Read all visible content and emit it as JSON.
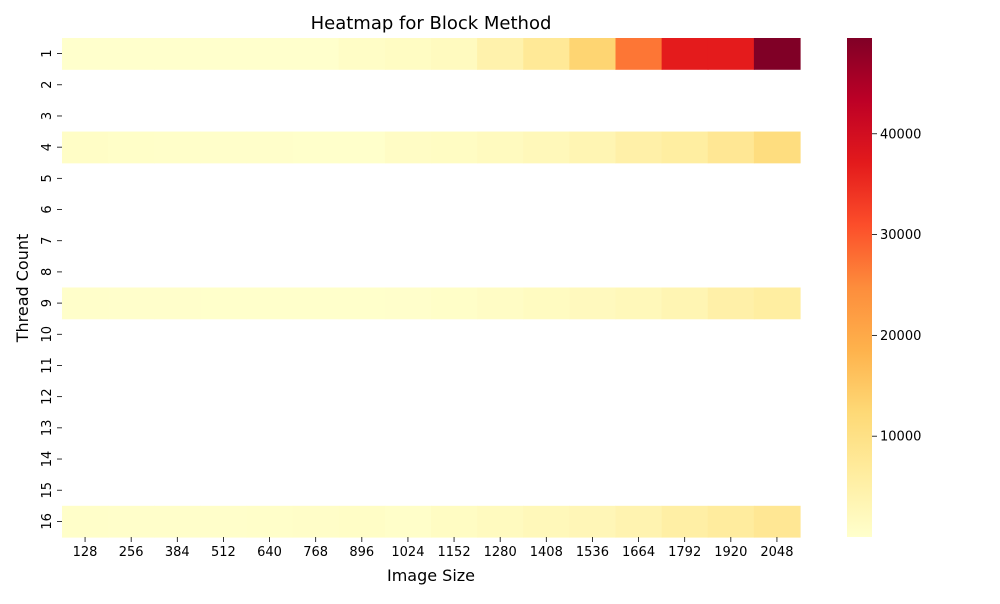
{
  "chart_data": {
    "type": "heatmap",
    "title": "Heatmap for Block Method",
    "xlabel": "Image Size",
    "ylabel": "Thread Count",
    "x_categories": [
      "128",
      "256",
      "384",
      "512",
      "640",
      "768",
      "896",
      "1024",
      "1152",
      "1280",
      "1408",
      "1536",
      "1664",
      "1792",
      "1920",
      "2048"
    ],
    "y_categories": [
      "1",
      "2",
      "3",
      "4",
      "5",
      "6",
      "7",
      "8",
      "9",
      "10",
      "11",
      "12",
      "13",
      "14",
      "15",
      "16"
    ],
    "values": [
      [
        1,
        2,
        3,
        5,
        10,
        20,
        800,
        1200,
        1800,
        4500,
        7500,
        13000,
        27000,
        37000,
        37000,
        49500
      ],
      [
        null,
        null,
        null,
        null,
        null,
        null,
        null,
        null,
        null,
        null,
        null,
        null,
        null,
        null,
        null,
        null
      ],
      [
        null,
        null,
        null,
        null,
        null,
        null,
        null,
        null,
        null,
        null,
        null,
        null,
        null,
        null,
        null,
        null
      ],
      [
        800,
        500,
        400,
        300,
        300,
        150,
        150,
        1000,
        1200,
        1800,
        2500,
        3500,
        5000,
        6000,
        8000,
        11000
      ],
      [
        null,
        null,
        null,
        null,
        null,
        null,
        null,
        null,
        null,
        null,
        null,
        null,
        null,
        null,
        null,
        null
      ],
      [
        null,
        null,
        null,
        null,
        null,
        null,
        null,
        null,
        null,
        null,
        null,
        null,
        null,
        null,
        null,
        null
      ],
      [
        null,
        null,
        null,
        null,
        null,
        null,
        null,
        null,
        null,
        null,
        null,
        null,
        null,
        null,
        null,
        null
      ],
      [
        null,
        null,
        null,
        null,
        null,
        null,
        null,
        null,
        null,
        null,
        null,
        null,
        null,
        null,
        null,
        null
      ],
      [
        300,
        200,
        200,
        150,
        150,
        150,
        150,
        200,
        500,
        1000,
        1500,
        2000,
        2500,
        3500,
        5000,
        6000
      ],
      [
        null,
        null,
        null,
        null,
        null,
        null,
        null,
        null,
        null,
        null,
        null,
        null,
        null,
        null,
        null,
        null
      ],
      [
        null,
        null,
        null,
        null,
        null,
        null,
        null,
        null,
        null,
        null,
        null,
        null,
        null,
        null,
        null,
        null
      ],
      [
        null,
        null,
        null,
        null,
        null,
        null,
        null,
        null,
        null,
        null,
        null,
        null,
        null,
        null,
        null,
        null
      ],
      [
        null,
        null,
        null,
        null,
        null,
        null,
        null,
        null,
        null,
        null,
        null,
        null,
        null,
        null,
        null,
        null
      ],
      [
        null,
        null,
        null,
        null,
        null,
        null,
        null,
        null,
        null,
        null,
        null,
        null,
        null,
        null,
        null,
        null
      ],
      [
        null,
        null,
        null,
        null,
        null,
        null,
        null,
        null,
        null,
        null,
        null,
        null,
        null,
        null,
        null,
        null
      ],
      [
        400,
        300,
        300,
        300,
        400,
        600,
        800,
        400,
        1200,
        1800,
        2500,
        3000,
        4000,
        5500,
        6500,
        8000
      ]
    ],
    "colormap": "YlOrRd",
    "colorbar": {
      "range": [
        0,
        49500
      ],
      "ticks": [
        10000,
        20000,
        30000,
        40000
      ],
      "tick_labels": [
        "10000",
        "20000",
        "30000",
        "40000"
      ]
    },
    "grid": false,
    "legend": "colorbar-right"
  }
}
